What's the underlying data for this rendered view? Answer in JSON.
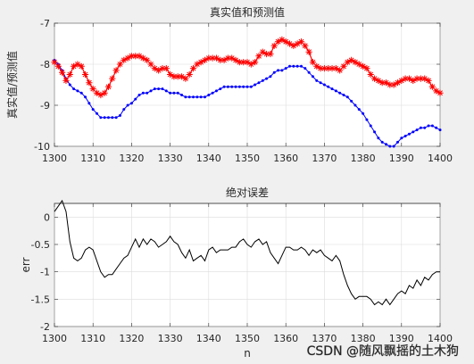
{
  "chart_data": [
    {
      "type": "line",
      "title": "真实值和预测值",
      "xlabel": "",
      "ylabel": "真实值/预测值",
      "xlim": [
        1300,
        1400
      ],
      "ylim": [
        -10,
        -7
      ],
      "xticks": [
        1300,
        1310,
        1320,
        1330,
        1340,
        1350,
        1360,
        1370,
        1380,
        1390,
        1400
      ],
      "yticks": [
        -10,
        -9,
        -8,
        -7
      ],
      "grid": true,
      "x": [
        1300,
        1301,
        1302,
        1303,
        1304,
        1305,
        1306,
        1307,
        1308,
        1309,
        1310,
        1311,
        1312,
        1313,
        1314,
        1315,
        1316,
        1317,
        1318,
        1319,
        1320,
        1321,
        1322,
        1323,
        1324,
        1325,
        1326,
        1327,
        1328,
        1329,
        1330,
        1331,
        1332,
        1333,
        1334,
        1335,
        1336,
        1337,
        1338,
        1339,
        1340,
        1341,
        1342,
        1343,
        1344,
        1345,
        1346,
        1347,
        1348,
        1349,
        1350,
        1351,
        1352,
        1353,
        1354,
        1355,
        1356,
        1357,
        1358,
        1359,
        1360,
        1361,
        1362,
        1363,
        1364,
        1365,
        1366,
        1367,
        1368,
        1369,
        1370,
        1371,
        1372,
        1373,
        1374,
        1375,
        1376,
        1377,
        1378,
        1379,
        1380,
        1381,
        1382,
        1383,
        1384,
        1385,
        1386,
        1387,
        1388,
        1389,
        1390,
        1391,
        1392,
        1393,
        1394,
        1395,
        1396,
        1397,
        1398,
        1399,
        1400
      ],
      "series": [
        {
          "color": "#0000ff",
          "marker": "dot",
          "values": [
            -7.9,
            -8.0,
            -8.15,
            -8.35,
            -8.5,
            -8.6,
            -8.65,
            -8.7,
            -8.8,
            -8.95,
            -9.1,
            -9.2,
            -9.3,
            -9.3,
            -9.3,
            -9.3,
            -9.3,
            -9.25,
            -9.1,
            -9.0,
            -8.95,
            -8.85,
            -8.75,
            -8.7,
            -8.7,
            -8.65,
            -8.6,
            -8.6,
            -8.6,
            -8.65,
            -8.7,
            -8.7,
            -8.7,
            -8.75,
            -8.8,
            -8.8,
            -8.8,
            -8.8,
            -8.8,
            -8.8,
            -8.75,
            -8.7,
            -8.65,
            -8.6,
            -8.55,
            -8.55,
            -8.55,
            -8.55,
            -8.55,
            -8.55,
            -8.55,
            -8.55,
            -8.5,
            -8.45,
            -8.4,
            -8.35,
            -8.3,
            -8.2,
            -8.15,
            -8.15,
            -8.1,
            -8.05,
            -8.05,
            -8.05,
            -8.05,
            -8.1,
            -8.2,
            -8.3,
            -8.4,
            -8.45,
            -8.5,
            -8.55,
            -8.6,
            -8.65,
            -8.7,
            -8.75,
            -8.8,
            -8.9,
            -9.0,
            -9.1,
            -9.2,
            -9.35,
            -9.5,
            -9.65,
            -9.8,
            -9.9,
            -9.95,
            -10.0,
            -10.0,
            -9.9,
            -9.8,
            -9.75,
            -9.7,
            -9.65,
            -9.6,
            -9.55,
            -9.55,
            -9.5,
            -9.5,
            -9.55,
            -9.6
          ]
        },
        {
          "color": "#ff0000",
          "marker": "star",
          "values": [
            -7.95,
            -8.05,
            -8.2,
            -8.4,
            -8.25,
            -8.05,
            -8.0,
            -8.05,
            -8.25,
            -8.45,
            -8.6,
            -8.7,
            -8.75,
            -8.7,
            -8.55,
            -8.35,
            -8.15,
            -8.0,
            -7.9,
            -7.85,
            -7.8,
            -7.8,
            -7.8,
            -7.85,
            -7.9,
            -8.0,
            -8.1,
            -8.15,
            -8.1,
            -8.1,
            -8.25,
            -8.3,
            -8.3,
            -8.3,
            -8.35,
            -8.25,
            -8.1,
            -8.0,
            -7.95,
            -7.9,
            -7.85,
            -7.85,
            -7.85,
            -7.9,
            -7.9,
            -7.85,
            -7.85,
            -7.9,
            -7.95,
            -7.95,
            -7.95,
            -8.0,
            -7.95,
            -7.8,
            -7.7,
            -7.75,
            -7.75,
            -7.55,
            -7.45,
            -7.4,
            -7.45,
            -7.5,
            -7.55,
            -7.5,
            -7.45,
            -7.55,
            -7.7,
            -7.95,
            -8.05,
            -8.1,
            -8.1,
            -8.1,
            -8.1,
            -8.1,
            -8.15,
            -8.05,
            -7.95,
            -7.9,
            -7.95,
            -8.0,
            -8.05,
            -8.1,
            -8.25,
            -8.35,
            -8.4,
            -8.45,
            -8.45,
            -8.5,
            -8.5,
            -8.45,
            -8.4,
            -8.35,
            -8.35,
            -8.4,
            -8.35,
            -8.35,
            -8.35,
            -8.4,
            -8.55,
            -8.65,
            -8.7
          ]
        }
      ]
    },
    {
      "type": "line",
      "title": "绝对误差",
      "xlabel": "n",
      "ylabel": "err",
      "xlim": [
        1300,
        1400
      ],
      "ylim": [
        -2,
        0.25
      ],
      "xticks": [
        1300,
        1310,
        1320,
        1330,
        1340,
        1350,
        1360,
        1370,
        1380,
        1390,
        1400
      ],
      "yticks": [
        -2,
        -1.5,
        -1,
        -0.5,
        0
      ],
      "grid": true,
      "x": [
        1300,
        1301,
        1302,
        1303,
        1304,
        1305,
        1306,
        1307,
        1308,
        1309,
        1310,
        1311,
        1312,
        1313,
        1314,
        1315,
        1316,
        1317,
        1318,
        1319,
        1320,
        1321,
        1322,
        1323,
        1324,
        1325,
        1326,
        1327,
        1328,
        1329,
        1330,
        1331,
        1332,
        1333,
        1334,
        1335,
        1336,
        1337,
        1338,
        1339,
        1340,
        1341,
        1342,
        1343,
        1344,
        1345,
        1346,
        1347,
        1348,
        1349,
        1350,
        1351,
        1352,
        1353,
        1354,
        1355,
        1356,
        1357,
        1358,
        1359,
        1360,
        1361,
        1362,
        1363,
        1364,
        1365,
        1366,
        1367,
        1368,
        1369,
        1370,
        1371,
        1372,
        1373,
        1374,
        1375,
        1376,
        1377,
        1378,
        1379,
        1380,
        1381,
        1382,
        1383,
        1384,
        1385,
        1386,
        1387,
        1388,
        1389,
        1390,
        1391,
        1392,
        1393,
        1394,
        1395,
        1396,
        1397,
        1398,
        1399,
        1400
      ],
      "series": [
        {
          "color": "#000000",
          "values": [
            0.1,
            0.2,
            0.3,
            0.1,
            -0.45,
            -0.75,
            -0.8,
            -0.75,
            -0.6,
            -0.55,
            -0.6,
            -0.8,
            -1.0,
            -1.1,
            -1.05,
            -1.05,
            -0.95,
            -0.85,
            -0.75,
            -0.7,
            -0.55,
            -0.4,
            -0.55,
            -0.4,
            -0.5,
            -0.4,
            -0.45,
            -0.55,
            -0.5,
            -0.45,
            -0.35,
            -0.45,
            -0.5,
            -0.65,
            -0.75,
            -0.6,
            -0.8,
            -0.75,
            -0.7,
            -0.8,
            -0.6,
            -0.55,
            -0.65,
            -0.6,
            -0.6,
            -0.6,
            -0.55,
            -0.55,
            -0.45,
            -0.4,
            -0.5,
            -0.55,
            -0.45,
            -0.4,
            -0.5,
            -0.45,
            -0.65,
            -0.75,
            -0.85,
            -0.7,
            -0.55,
            -0.55,
            -0.6,
            -0.6,
            -0.55,
            -0.6,
            -0.7,
            -0.6,
            -0.65,
            -0.6,
            -0.7,
            -0.75,
            -0.8,
            -0.7,
            -0.8,
            -1.05,
            -1.25,
            -1.4,
            -1.5,
            -1.45,
            -1.45,
            -1.45,
            -1.5,
            -1.6,
            -1.55,
            -1.6,
            -1.5,
            -1.6,
            -1.5,
            -1.4,
            -1.35,
            -1.4,
            -1.25,
            -1.3,
            -1.15,
            -1.25,
            -1.1,
            -1.15,
            -1.05,
            -1.0,
            -1.0
          ]
        }
      ]
    }
  ],
  "watermark": "CSDN @随风飘摇的土木狗"
}
